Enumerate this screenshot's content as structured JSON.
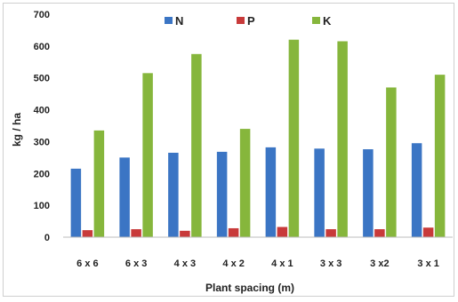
{
  "chart_data": {
    "type": "bar",
    "title": "",
    "xlabel": "Plant spacing (m)",
    "ylabel": "kg / ha",
    "ylim": [
      0,
      700
    ],
    "yticks": [
      0,
      100,
      200,
      300,
      400,
      500,
      600,
      700
    ],
    "grid": false,
    "legend_position": "top",
    "categories": [
      "6 x 6",
      "6 x 3",
      "4 x 3",
      "4 x 2",
      "4 x 1",
      "3 x 3",
      "3 x2",
      "3 x 1"
    ],
    "series": [
      {
        "name": "N",
        "color": "#3b75c4",
        "values": [
          215,
          250,
          265,
          268,
          282,
          278,
          276,
          295
        ]
      },
      {
        "name": "P",
        "color": "#c83a3a",
        "values": [
          22,
          25,
          20,
          28,
          32,
          25,
          25,
          30
        ]
      },
      {
        "name": "K",
        "color": "#86b63c",
        "values": [
          335,
          515,
          575,
          340,
          620,
          615,
          470,
          510
        ]
      }
    ]
  }
}
